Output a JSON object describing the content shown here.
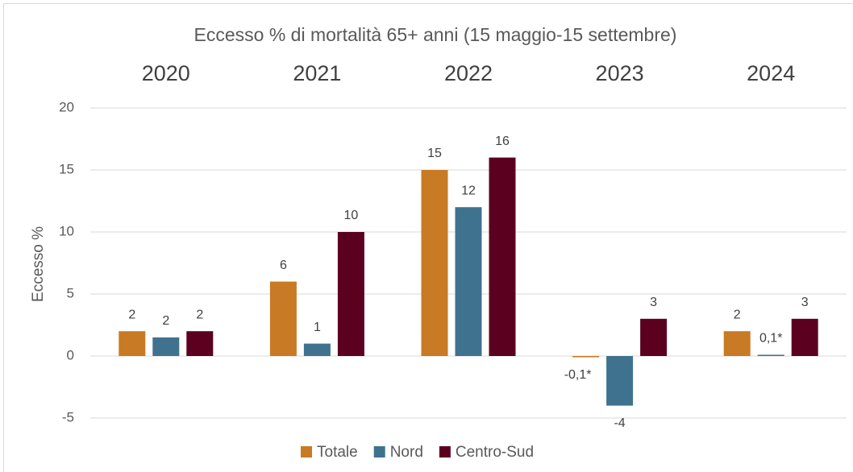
{
  "chart_data": {
    "type": "bar",
    "title": "Eccesso % di mortalità 65+ anni (15 maggio-15 settembre)",
    "y_label": "Eccesso %",
    "categories": [
      "2020",
      "2021",
      "2022",
      "2023",
      "2024"
    ],
    "series": [
      {
        "name": "Totale",
        "color": "#c87a24",
        "values": [
          2,
          6,
          15,
          -0.1,
          2
        ],
        "value_labels": [
          "2",
          "6",
          "15",
          "-0,1*",
          "2"
        ]
      },
      {
        "name": "Nord",
        "color": "#3f728f",
        "values": [
          1.5,
          1,
          12,
          -4,
          0.1
        ],
        "value_labels": [
          "2",
          "1",
          "12",
          "-4",
          "0,1*"
        ]
      },
      {
        "name": "Centro-Sud",
        "color": "#5c0020",
        "values": [
          2,
          10,
          16,
          3,
          3
        ],
        "value_labels": [
          "2",
          "10",
          "16",
          "3",
          "3"
        ]
      }
    ],
    "ylim": [
      -5,
      20
    ],
    "yticks": [
      -5,
      0,
      5,
      10,
      15,
      20
    ],
    "grid": true,
    "legend": "bottom"
  }
}
